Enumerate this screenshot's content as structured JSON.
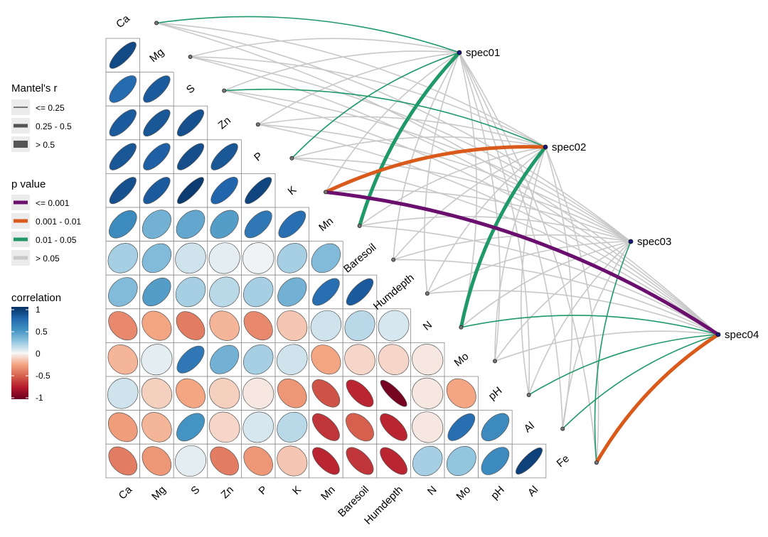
{
  "chart_data": {
    "type": "heatmap",
    "variables": [
      "Ca",
      "Mg",
      "S",
      "Zn",
      "P",
      "K",
      "Mn",
      "Baresoil",
      "Humdepth",
      "N",
      "Mo",
      "pH",
      "Al",
      "Fe"
    ],
    "correlation_lower": [
      [
        0.88
      ],
      [
        0.72,
        0.8
      ],
      [
        0.8,
        0.82,
        0.85
      ],
      [
        0.82,
        0.78,
        0.86,
        0.82
      ],
      [
        0.85,
        0.8,
        0.95,
        0.75,
        0.9
      ],
      [
        0.55,
        0.35,
        0.4,
        0.45,
        0.65,
        0.7
      ],
      [
        0.2,
        0.3,
        0.1,
        0.05,
        0.02,
        0.2,
        0.3
      ],
      [
        0.3,
        0.45,
        0.2,
        0.15,
        0.2,
        0.35,
        0.7,
        0.8
      ],
      [
        -0.35,
        -0.25,
        -0.4,
        -0.2,
        -0.35,
        -0.15,
        0.1,
        0.15,
        0.08
      ],
      [
        -0.2,
        0.05,
        0.65,
        0.35,
        0.2,
        0.1,
        -0.25,
        -0.1,
        -0.1,
        -0.05
      ],
      [
        0.1,
        -0.12,
        -0.25,
        -0.12,
        -0.05,
        -0.3,
        -0.55,
        -0.7,
        -0.95,
        -0.05,
        -0.25
      ],
      [
        -0.28,
        -0.2,
        0.5,
        -0.1,
        0.08,
        0.15,
        -0.65,
        -0.5,
        -0.7,
        -0.05,
        0.7,
        0.55
      ],
      [
        -0.4,
        -0.3,
        0.05,
        -0.4,
        -0.3,
        -0.15,
        -0.7,
        -0.65,
        -0.7,
        0.2,
        0.25,
        0.55,
        0.92
      ]
    ],
    "species": [
      "spec01",
      "spec02",
      "spec03",
      "spec04"
    ],
    "mantel_links": [
      {
        "spec": "spec01",
        "env": "Ca",
        "r": "<= 0.25",
        "p": "0.01 - 0.05"
      },
      {
        "spec": "spec01",
        "env": "Mg",
        "r": "<= 0.25",
        "p": "> 0.05"
      },
      {
        "spec": "spec01",
        "env": "S",
        "r": "<= 0.25",
        "p": "> 0.05"
      },
      {
        "spec": "spec01",
        "env": "Zn",
        "r": "<= 0.25",
        "p": "> 0.05"
      },
      {
        "spec": "spec01",
        "env": "P",
        "r": "<= 0.25",
        "p": "0.01 - 0.05"
      },
      {
        "spec": "spec01",
        "env": "K",
        "r": "<= 0.25",
        "p": "> 0.05"
      },
      {
        "spec": "spec01",
        "env": "Mn",
        "r": "> 0.5",
        "p": "0.01 - 0.05"
      },
      {
        "spec": "spec01",
        "env": "Baresoil",
        "r": "<= 0.25",
        "p": "> 0.05"
      },
      {
        "spec": "spec01",
        "env": "Humdepth",
        "r": "<= 0.25",
        "p": "> 0.05"
      },
      {
        "spec": "spec01",
        "env": "N",
        "r": "<= 0.25",
        "p": "> 0.05"
      },
      {
        "spec": "spec01",
        "env": "Mo",
        "r": "<= 0.25",
        "p": "> 0.05"
      },
      {
        "spec": "spec01",
        "env": "pH",
        "r": "<= 0.25",
        "p": "> 0.05"
      },
      {
        "spec": "spec01",
        "env": "Al",
        "r": "<= 0.25",
        "p": "> 0.05"
      },
      {
        "spec": "spec01",
        "env": "Fe",
        "r": "<= 0.25",
        "p": "> 0.05"
      },
      {
        "spec": "spec02",
        "env": "Ca",
        "r": "<= 0.25",
        "p": "> 0.05"
      },
      {
        "spec": "spec02",
        "env": "Mg",
        "r": "<= 0.25",
        "p": "> 0.05"
      },
      {
        "spec": "spec02",
        "env": "S",
        "r": "<= 0.25",
        "p": "0.01 - 0.05"
      },
      {
        "spec": "spec02",
        "env": "Zn",
        "r": "<= 0.25",
        "p": "> 0.05"
      },
      {
        "spec": "spec02",
        "env": "P",
        "r": "<= 0.25",
        "p": "> 0.05"
      },
      {
        "spec": "spec02",
        "env": "K",
        "r": "> 0.5",
        "p": "0.001 - 0.01"
      },
      {
        "spec": "spec02",
        "env": "Mn",
        "r": "<= 0.25",
        "p": "> 0.05"
      },
      {
        "spec": "spec02",
        "env": "Baresoil",
        "r": "<= 0.25",
        "p": "> 0.05"
      },
      {
        "spec": "spec02",
        "env": "Humdepth",
        "r": "<= 0.25",
        "p": "> 0.05"
      },
      {
        "spec": "spec02",
        "env": "N",
        "r": "> 0.5",
        "p": "0.01 - 0.05"
      },
      {
        "spec": "spec02",
        "env": "Mo",
        "r": "<= 0.25",
        "p": "> 0.05"
      },
      {
        "spec": "spec02",
        "env": "pH",
        "r": "<= 0.25",
        "p": "> 0.05"
      },
      {
        "spec": "spec02",
        "env": "Al",
        "r": "<= 0.25",
        "p": "> 0.05"
      },
      {
        "spec": "spec02",
        "env": "Fe",
        "r": "<= 0.25",
        "p": "> 0.05"
      },
      {
        "spec": "spec03",
        "env": "Ca",
        "r": "<= 0.25",
        "p": "> 0.05"
      },
      {
        "spec": "spec03",
        "env": "Mg",
        "r": "<= 0.25",
        "p": "> 0.05"
      },
      {
        "spec": "spec03",
        "env": "S",
        "r": "<= 0.25",
        "p": "> 0.05"
      },
      {
        "spec": "spec03",
        "env": "Zn",
        "r": "<= 0.25",
        "p": "> 0.05"
      },
      {
        "spec": "spec03",
        "env": "P",
        "r": "<= 0.25",
        "p": "> 0.05"
      },
      {
        "spec": "spec03",
        "env": "K",
        "r": "<= 0.25",
        "p": "> 0.05"
      },
      {
        "spec": "spec03",
        "env": "Mn",
        "r": "<= 0.25",
        "p": "> 0.05"
      },
      {
        "spec": "spec03",
        "env": "Baresoil",
        "r": "<= 0.25",
        "p": "> 0.05"
      },
      {
        "spec": "spec03",
        "env": "Humdepth",
        "r": "<= 0.25",
        "p": "> 0.05"
      },
      {
        "spec": "spec03",
        "env": "N",
        "r": "<= 0.25",
        "p": "> 0.05"
      },
      {
        "spec": "spec03",
        "env": "Mo",
        "r": "<= 0.25",
        "p": "> 0.05"
      },
      {
        "spec": "spec03",
        "env": "pH",
        "r": "<= 0.25",
        "p": "> 0.05"
      },
      {
        "spec": "spec03",
        "env": "Al",
        "r": "<= 0.25",
        "p": "> 0.05"
      },
      {
        "spec": "spec03",
        "env": "Fe",
        "r": "<= 0.25",
        "p": "0.01 - 0.05"
      },
      {
        "spec": "spec04",
        "env": "Ca",
        "r": "<= 0.25",
        "p": "> 0.05"
      },
      {
        "spec": "spec04",
        "env": "Mg",
        "r": "<= 0.25",
        "p": "> 0.05"
      },
      {
        "spec": "spec04",
        "env": "S",
        "r": "<= 0.25",
        "p": "> 0.05"
      },
      {
        "spec": "spec04",
        "env": "Zn",
        "r": "<= 0.25",
        "p": "> 0.05"
      },
      {
        "spec": "spec04",
        "env": "P",
        "r": "<= 0.25",
        "p": "> 0.05"
      },
      {
        "spec": "spec04",
        "env": "K",
        "r": "> 0.5",
        "p": "<= 0.001"
      },
      {
        "spec": "spec04",
        "env": "Mn",
        "r": "<= 0.25",
        "p": "> 0.05"
      },
      {
        "spec": "spec04",
        "env": "Baresoil",
        "r": "<= 0.25",
        "p": "> 0.05"
      },
      {
        "spec": "spec04",
        "env": "Humdepth",
        "r": "<= 0.25",
        "p": "> 0.05"
      },
      {
        "spec": "spec04",
        "env": "N",
        "r": "<= 0.25",
        "p": "0.01 - 0.05"
      },
      {
        "spec": "spec04",
        "env": "Mo",
        "r": "<= 0.25",
        "p": "> 0.05"
      },
      {
        "spec": "spec04",
        "env": "pH",
        "r": "<= 0.25",
        "p": "0.01 - 0.05"
      },
      {
        "spec": "spec04",
        "env": "Al",
        "r": "<= 0.25",
        "p": "0.01 - 0.05"
      },
      {
        "spec": "spec04",
        "env": "Fe",
        "r": "> 0.5",
        "p": "0.001 - 0.01"
      }
    ],
    "legend_mantel": {
      "title": "Mantel's r",
      "items": [
        "<= 0.25",
        "0.25 - 0.5",
        "> 0.5"
      ]
    },
    "legend_p": {
      "title": "p value",
      "items": [
        {
          "label": "<= 0.001",
          "color": "#6a0f6e"
        },
        {
          "label": "0.001 - 0.01",
          "color": "#d95a1a"
        },
        {
          "label": "0.01 - 0.05",
          "color": "#1f9968"
        },
        {
          "label": "> 0.05",
          "color": "#c8c8c8"
        }
      ]
    },
    "legend_corr": {
      "title": "correlation",
      "ticks": [
        "1",
        "0.5",
        "0",
        "-0.5",
        "-1"
      ],
      "range": [
        -1,
        1
      ]
    }
  }
}
